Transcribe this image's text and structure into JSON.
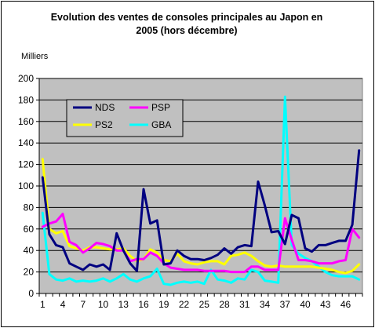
{
  "chart_data": {
    "type": "line",
    "title": "Evolution des ventes de consoles principales au Japon en\n2005 (hors décembre)",
    "ylabel": "Milliers",
    "xlabel": "",
    "ylim": [
      0,
      200
    ],
    "yticks": [
      0,
      20,
      40,
      60,
      80,
      100,
      120,
      140,
      160,
      180,
      200
    ],
    "xticks": [
      1,
      4,
      7,
      10,
      13,
      16,
      19,
      22,
      25,
      28,
      31,
      34,
      37,
      40,
      43,
      46
    ],
    "x": [
      1,
      2,
      3,
      4,
      5,
      6,
      7,
      8,
      9,
      10,
      11,
      12,
      13,
      14,
      15,
      16,
      17,
      18,
      19,
      20,
      21,
      22,
      23,
      24,
      25,
      26,
      27,
      28,
      29,
      30,
      31,
      32,
      33,
      34,
      35,
      36,
      37,
      38,
      39,
      40,
      41,
      42,
      43,
      44,
      45,
      46,
      47,
      48
    ],
    "grid": "horizontal",
    "legend_position": "upper-left inside plot",
    "background": "#c0c0c0",
    "series": [
      {
        "name": "NDS",
        "color": "#000080",
        "values": [
          108,
          55,
          45,
          43,
          28,
          25,
          22,
          27,
          25,
          27,
          22,
          56,
          40,
          28,
          21,
          97,
          65,
          68,
          27,
          28,
          40,
          35,
          32,
          32,
          31,
          33,
          36,
          42,
          37,
          43,
          45,
          44,
          104,
          82,
          57,
          58,
          46,
          73,
          70,
          42,
          39,
          45,
          45,
          47,
          49,
          49,
          64,
          133
        ]
      },
      {
        "name": "PSP",
        "color": "#ff00ff",
        "values": [
          62,
          65,
          67,
          74,
          48,
          45,
          38,
          42,
          47,
          46,
          44,
          40,
          40,
          30,
          32,
          32,
          38,
          35,
          28,
          24,
          23,
          22,
          22,
          22,
          21,
          21,
          21,
          21,
          20,
          20,
          20,
          25,
          25,
          22,
          22,
          22,
          70,
          50,
          31,
          31,
          30,
          28,
          28,
          28,
          30,
          31,
          60,
          52
        ]
      },
      {
        "name": "PS2",
        "color": "#ffff00",
        "values": [
          125,
          60,
          56,
          58,
          44,
          42,
          40,
          43,
          43,
          42,
          41,
          41,
          42,
          35,
          30,
          32,
          41,
          38,
          31,
          30,
          37,
          30,
          28,
          27,
          29,
          30,
          30,
          27,
          35,
          36,
          38,
          35,
          30,
          26,
          25,
          26,
          25,
          25,
          25,
          25,
          25,
          24,
          23,
          22,
          20,
          19,
          21,
          27
        ]
      },
      {
        "name": "GBA",
        "color": "#00ffff",
        "values": [
          75,
          18,
          13,
          12,
          14,
          11,
          12,
          11,
          12,
          14,
          11,
          14,
          18,
          13,
          11,
          14,
          16,
          23,
          9,
          8,
          10,
          11,
          10,
          11,
          9,
          22,
          13,
          12,
          10,
          14,
          13,
          22,
          20,
          12,
          11,
          10,
          183,
          45,
          37,
          33,
          30,
          25,
          20,
          17,
          16,
          16,
          16,
          13
        ]
      }
    ]
  }
}
